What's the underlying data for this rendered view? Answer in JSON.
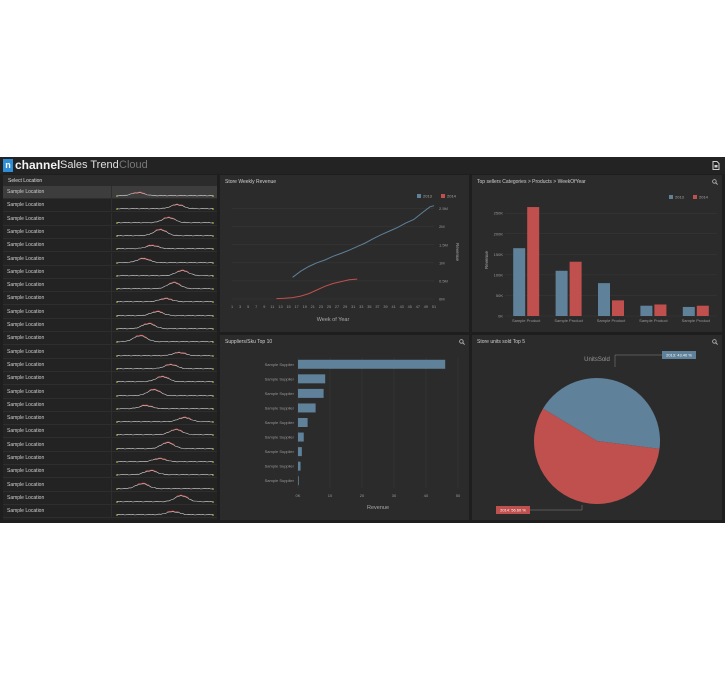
{
  "app": {
    "logo_letter": "n",
    "brand": "channel",
    "title": "Sales Trend",
    "suffix": "Cloud"
  },
  "icons": [
    "export-icon",
    "zoom-icon"
  ],
  "locations": {
    "header": "Select Location",
    "selected_index": 0,
    "items": [
      "Sample Location",
      "Sample Location",
      "Sample Location",
      "Sample Location",
      "Sample Location",
      "Sample Location",
      "Sample Location",
      "Sample Location",
      "Sample Location",
      "Sample Location",
      "Sample Location",
      "Sample Location",
      "Sample Location",
      "Sample Location",
      "Sample Location",
      "Sample Location",
      "Sample Location",
      "Sample Location",
      "Sample Location",
      "Sample Location",
      "Sample Location",
      "Sample Location",
      "Sample Location",
      "Sample Location",
      "Sample Location"
    ]
  },
  "colors": {
    "series_2013": "#5f8199",
    "series_2014": "#c0504d"
  },
  "chart_data": [
    {
      "id": "weekly",
      "type": "line",
      "title": "Store Weekly Revenue",
      "xlabel": "Week of Year",
      "ylabel": "Revenue",
      "x_ticks": [
        "1",
        "3",
        "5",
        "7",
        "9",
        "11",
        "13",
        "15",
        "17",
        "19",
        "21",
        "23",
        "25",
        "27",
        "29",
        "31",
        "33",
        "35",
        "37",
        "39",
        "41",
        "43",
        "45",
        "47",
        "49",
        "51"
      ],
      "y_ticks": [
        "0M",
        "0.5M",
        "1M",
        "1.5M",
        "2M",
        "2.5M"
      ],
      "ylim": [
        0,
        2.6
      ],
      "legend": [
        "2013",
        "2014"
      ],
      "legend_position": "top-right",
      "series": [
        {
          "name": "2013",
          "x": [
            16,
            18,
            20,
            22,
            24,
            26,
            28,
            30,
            32,
            34,
            36,
            38,
            40,
            42,
            44,
            46,
            48,
            50,
            51
          ],
          "y": [
            0.6,
            0.77,
            0.9,
            1.0,
            1.08,
            1.18,
            1.26,
            1.35,
            1.45,
            1.55,
            1.67,
            1.78,
            1.88,
            1.98,
            2.1,
            2.2,
            2.38,
            2.55,
            2.58
          ]
        },
        {
          "name": "2014",
          "x": [
            12,
            14,
            16,
            18,
            20,
            22,
            24,
            26,
            28,
            30,
            32
          ],
          "y": [
            0.01,
            0.02,
            0.04,
            0.08,
            0.15,
            0.25,
            0.35,
            0.43,
            0.48,
            0.53,
            0.55
          ]
        }
      ]
    },
    {
      "id": "categories",
      "type": "bar",
      "title": "Top sellers Categories > Products > WeekOfYear",
      "ylabel": "Revenue",
      "y_ticks": [
        "0K",
        "50K",
        "100K",
        "150K",
        "200K",
        "250K"
      ],
      "ylim": [
        0,
        270
      ],
      "legend": [
        "2013",
        "2014"
      ],
      "legend_position": "top-right",
      "categories": [
        "Sample Product",
        "Sample Product",
        "Sample Product",
        "Sample Product",
        "Sample Product"
      ],
      "series": [
        {
          "name": "2013",
          "values": [
            165,
            110,
            80,
            25,
            22
          ]
        },
        {
          "name": "2014",
          "values": [
            265,
            132,
            38,
            28,
            25
          ]
        }
      ]
    },
    {
      "id": "suppliers",
      "type": "bar",
      "orientation": "horizontal",
      "title": "Suppliers/Sku Top 10",
      "xlabel": "Revenue",
      "x_ticks": [
        "0K",
        "10",
        "20",
        "30",
        "40",
        "50"
      ],
      "xlim": [
        0,
        50
      ],
      "categories": [
        "Sample Supplier",
        "Sample Supplier",
        "Sample Supplier",
        "Sample Supplier",
        "Sample Supplier",
        "Sample Supplier",
        "Sample Supplier",
        "Sample Supplier",
        "Sample Supplier"
      ],
      "values": [
        46,
        8.5,
        8,
        5.5,
        3,
        1.8,
        1.2,
        0.8,
        0.2
      ]
    },
    {
      "id": "units",
      "type": "pie",
      "title": "Store units sold Top 5",
      "subtitle": "UnitsSold",
      "slices": [
        {
          "name": "2013",
          "value": 43.4,
          "label": "2013: 43.40 %"
        },
        {
          "name": "2014",
          "value": 56.6,
          "label": "2014: 56.60 %"
        }
      ]
    }
  ]
}
